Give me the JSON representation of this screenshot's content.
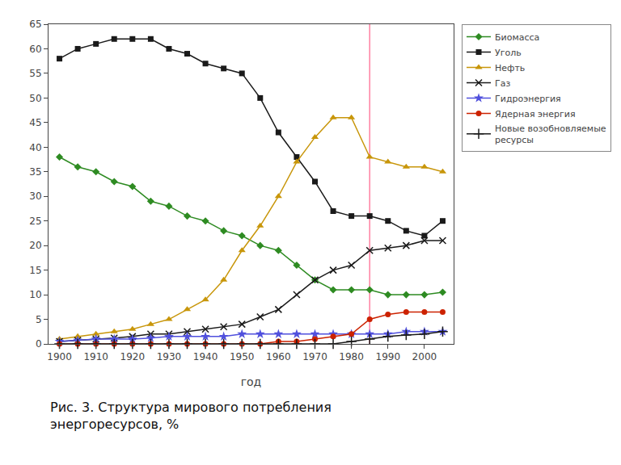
{
  "chart_data": {
    "type": "line",
    "title": "Рис. 3. Структура мирового потребления\nэнергоресурсов, %",
    "x_label": "год",
    "x": [
      1900,
      1905,
      1910,
      1915,
      1920,
      1925,
      1930,
      1935,
      1940,
      1945,
      1950,
      1955,
      1960,
      1965,
      1970,
      1975,
      1980,
      1985,
      1990,
      1995,
      2000,
      2005
    ],
    "series": [
      {
        "name": "Биомасса",
        "color": "#2E8B22",
        "marker": "diamond",
        "values": [
          38,
          36,
          35,
          33,
          32,
          29,
          28,
          26,
          25,
          23,
          22,
          20,
          19,
          16,
          13,
          11,
          11,
          11,
          10,
          10,
          10,
          10.5
        ]
      },
      {
        "name": "Уголь",
        "color": "#1A1A1A",
        "marker": "square",
        "values": [
          58,
          60,
          61,
          62,
          62,
          62,
          60,
          59,
          57,
          56,
          55,
          50,
          43,
          38,
          33,
          27,
          26,
          26,
          25,
          23,
          22,
          25
        ]
      },
      {
        "name": "Нефть",
        "color": "#C8960A",
        "marker": "triangle",
        "values": [
          1,
          1.5,
          2,
          2.5,
          3,
          4,
          5,
          7,
          9,
          13,
          19,
          24,
          30,
          37,
          42,
          46,
          46,
          38,
          37,
          36,
          36,
          35
        ]
      },
      {
        "name": "Газ",
        "color": "#1A1A1A",
        "marker": "x",
        "values": [
          0.5,
          0.7,
          1,
          1.2,
          1.5,
          2,
          2,
          2.5,
          3,
          3.5,
          4,
          5.5,
          7,
          10,
          13,
          15,
          16,
          19,
          19.5,
          20,
          21,
          21
        ]
      },
      {
        "name": "Гидроэнергия",
        "color": "#5050DD",
        "marker": "star",
        "values": [
          0.5,
          0.7,
          1,
          1,
          1,
          1.2,
          1.5,
          1.5,
          1.5,
          1.5,
          2,
          2,
          2,
          2,
          2,
          2,
          2,
          2,
          2,
          2.5,
          2.5,
          2.5
        ]
      },
      {
        "name": "Ядерная энергия",
        "color": "#CC2200",
        "marker": "circle",
        "values": [
          0,
          0,
          0,
          0,
          0,
          0,
          0,
          0,
          0,
          0,
          0,
          0,
          0.5,
          0.5,
          1,
          1.5,
          2,
          5,
          6,
          6.5,
          6.5,
          6.5
        ]
      },
      {
        "name": "Новые возобновляемые\nресурсы",
        "color": "#1A1A1A",
        "marker": "plus",
        "values": [
          0,
          0,
          0,
          0,
          0,
          0,
          0,
          0,
          0,
          0,
          0,
          0,
          0,
          0,
          0,
          0,
          0.5,
          1,
          1.5,
          1.8,
          2,
          2.5
        ]
      }
    ],
    "vline": {
      "x": 1985,
      "color": "#FF80A0"
    },
    "xlim": [
      1897,
      2008
    ],
    "xticks": [
      1900,
      1910,
      1920,
      1930,
      1940,
      1950,
      1960,
      1970,
      1980,
      1990,
      2000
    ],
    "ylim": [
      0,
      65
    ],
    "yticks": [
      0,
      5,
      10,
      15,
      20,
      25,
      30,
      35,
      40,
      45,
      50,
      55,
      60,
      65
    ],
    "grid": false,
    "legend": "right"
  }
}
